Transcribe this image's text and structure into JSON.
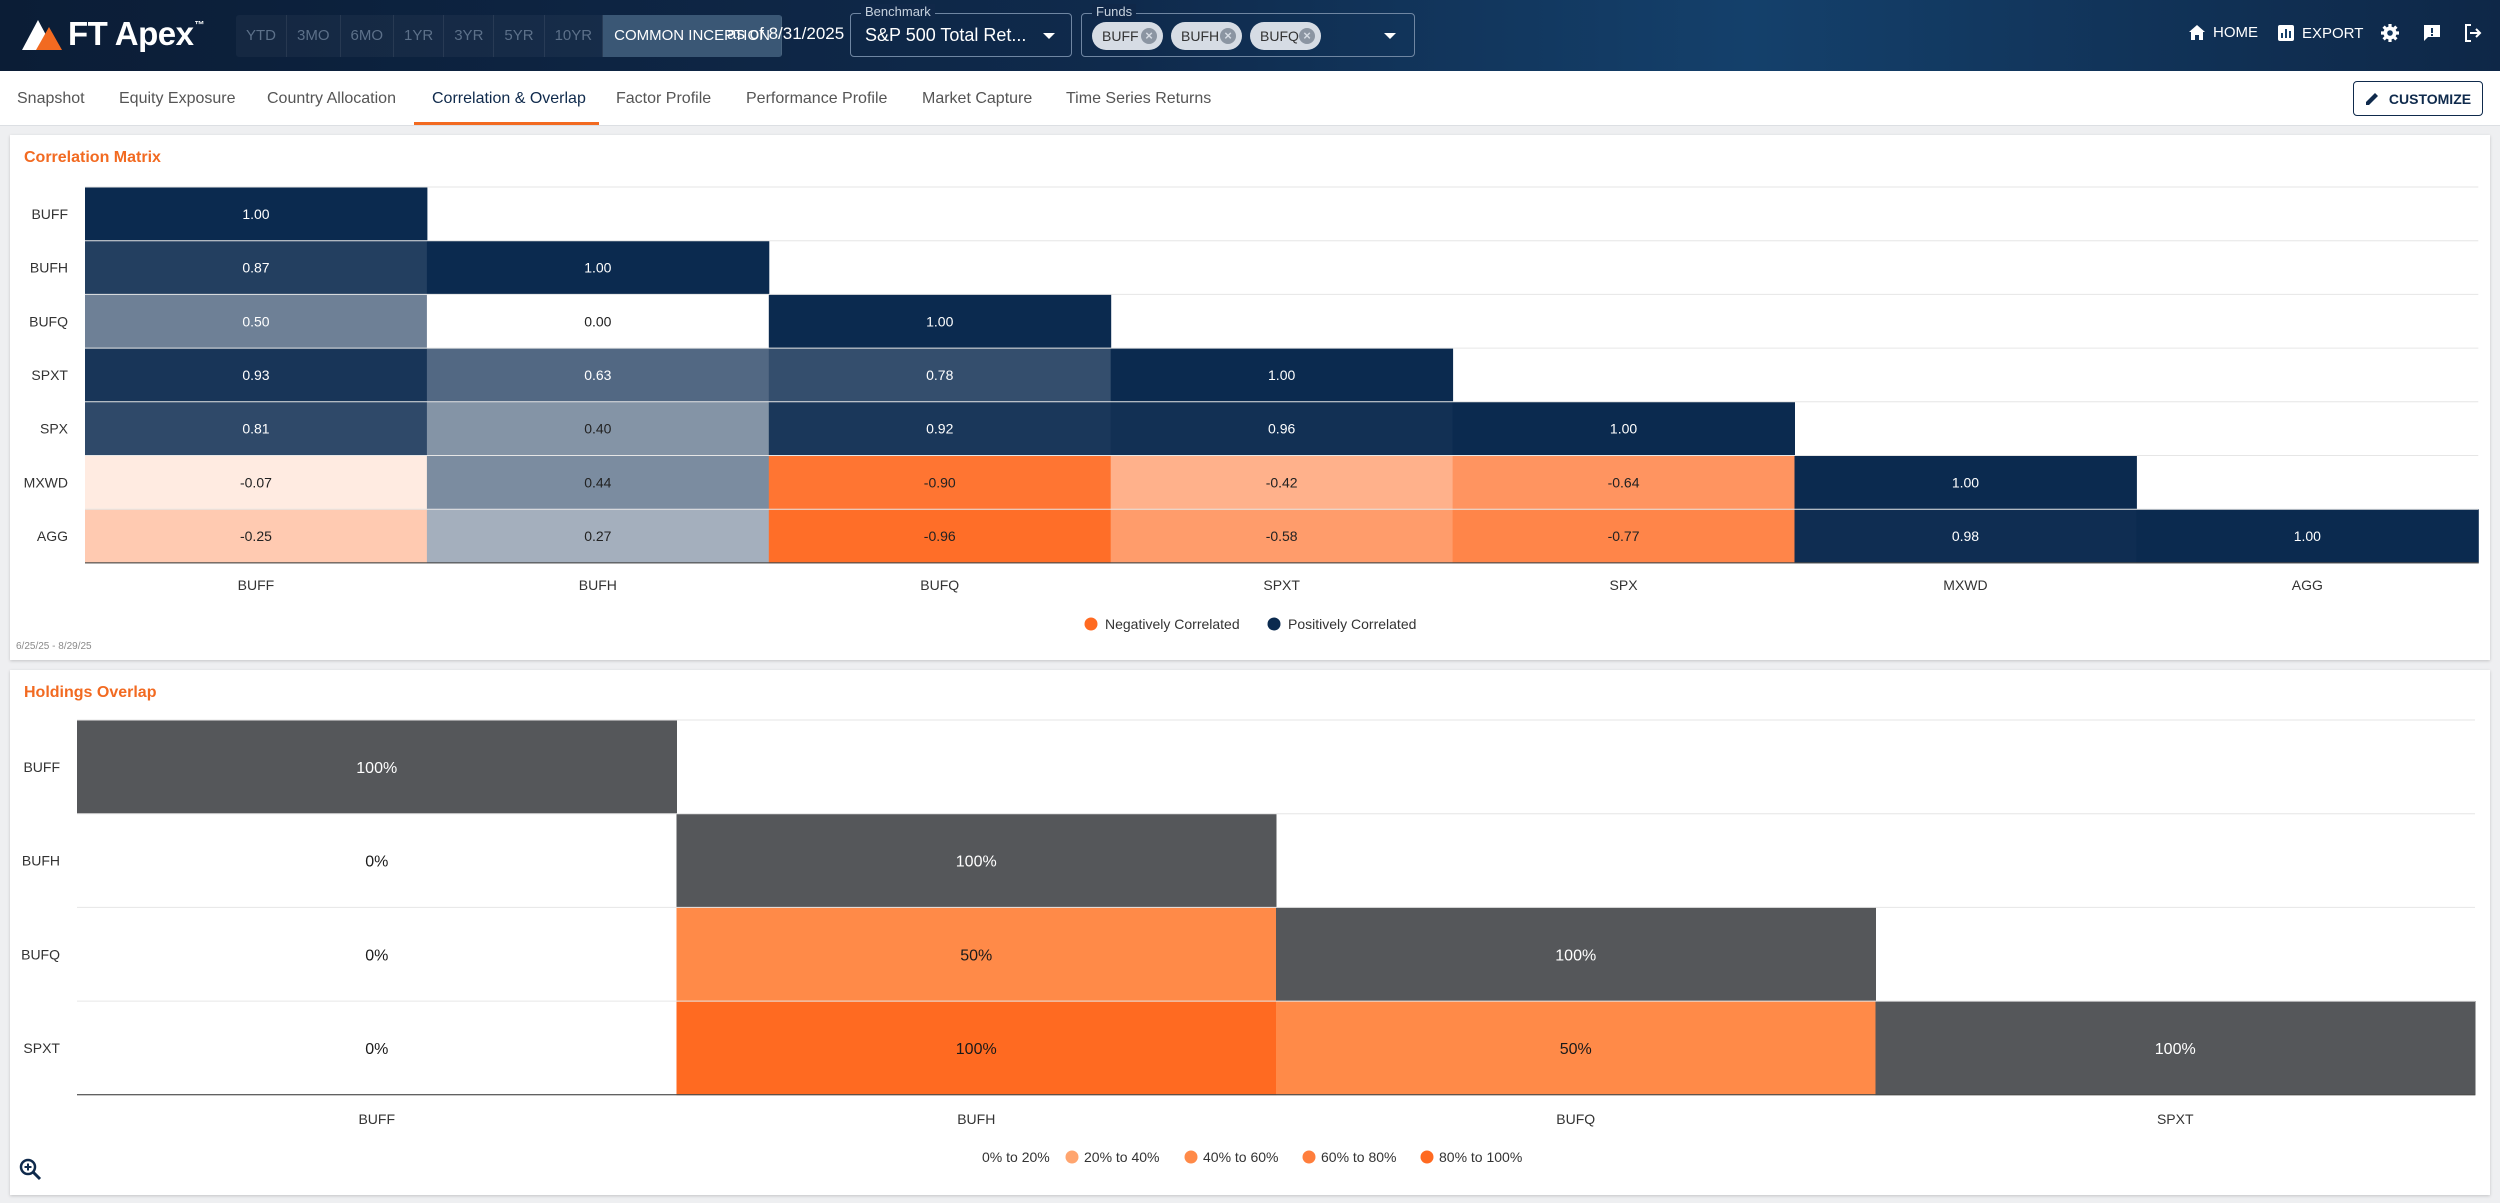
{
  "header": {
    "logo_text": "FT Apex",
    "logo_tm": "™",
    "periods": [
      {
        "label": "YTD",
        "active": false
      },
      {
        "label": "3MO",
        "active": false
      },
      {
        "label": "6MO",
        "active": false
      },
      {
        "label": "1YR",
        "active": false
      },
      {
        "label": "3YR",
        "active": false
      },
      {
        "label": "5YR",
        "active": false
      },
      {
        "label": "10YR",
        "active": false
      },
      {
        "label": "COMMON INCEPTION",
        "active": true
      }
    ],
    "as_of": "as of 8/31/2025",
    "benchmark": {
      "label": "Benchmark",
      "value": "S&P 500 Total Ret..."
    },
    "funds": {
      "label": "Funds",
      "chips": [
        "BUFF",
        "BUFH",
        "BUFQ"
      ]
    },
    "nav": {
      "home": "HOME",
      "export": "EXPORT"
    }
  },
  "tabs": [
    {
      "label": "Snapshot",
      "active": false
    },
    {
      "label": "Equity Exposure",
      "active": false
    },
    {
      "label": "Country Allocation",
      "active": false
    },
    {
      "label": "Correlation & Overlap",
      "active": true
    },
    {
      "label": "Factor Profile",
      "active": false
    },
    {
      "label": "Performance Profile",
      "active": false
    },
    {
      "label": "Market Capture",
      "active": false
    },
    {
      "label": "Time Series Returns",
      "active": false
    }
  ],
  "customize_label": "CUSTOMIZE",
  "colors": {
    "accent": "#f26a21",
    "navy": "#0f2a4c",
    "positive_max": "#0b2a4f",
    "negative_max": "#ff6a21",
    "overlap_full": "#55575a"
  },
  "correlation": {
    "title": "Correlation Matrix",
    "date_range": "6/25/25 - 8/29/25",
    "legend": [
      "Negatively Correlated",
      "Positively Correlated"
    ]
  },
  "overlap": {
    "title": "Holdings Overlap",
    "legend": [
      "0% to 20%",
      "20% to 40%",
      "40% to 60%",
      "60% to 80%",
      "80% to 100%"
    ]
  },
  "chart_data": [
    {
      "type": "heatmap",
      "title": "Correlation Matrix",
      "rows": [
        "BUFF",
        "BUFH",
        "BUFQ",
        "SPXT",
        "SPX",
        "MXWD",
        "AGG"
      ],
      "columns": [
        "BUFF",
        "BUFH",
        "BUFQ",
        "SPXT",
        "SPX",
        "MXWD",
        "AGG"
      ],
      "values": [
        [
          1.0,
          null,
          null,
          null,
          null,
          null,
          null
        ],
        [
          0.87,
          1.0,
          null,
          null,
          null,
          null,
          null
        ],
        [
          0.5,
          0.0,
          1.0,
          null,
          null,
          null,
          null
        ],
        [
          0.93,
          0.63,
          0.78,
          1.0,
          null,
          null,
          null
        ],
        [
          0.81,
          0.4,
          0.92,
          0.96,
          1.0,
          null,
          null
        ],
        [
          -0.07,
          0.44,
          -0.9,
          -0.42,
          -0.64,
          1.0,
          null
        ],
        [
          -0.25,
          0.27,
          -0.96,
          -0.58,
          -0.77,
          0.98,
          1.0
        ]
      ],
      "range": [
        -1,
        1
      ],
      "legend": [
        "Negatively Correlated",
        "Positively Correlated"
      ]
    },
    {
      "type": "heatmap",
      "title": "Holdings Overlap",
      "rows": [
        "BUFF",
        "BUFH",
        "BUFQ",
        "SPXT"
      ],
      "columns": [
        "BUFF",
        "BUFH",
        "BUFQ",
        "SPXT"
      ],
      "values": [
        [
          "100%",
          null,
          null,
          null
        ],
        [
          "0%",
          "100%",
          null,
          null
        ],
        [
          "0%",
          "50%",
          "100%",
          null
        ],
        [
          "0%",
          "100%",
          "50%",
          "100%"
        ]
      ],
      "legend": [
        "0% to 20%",
        "20% to 40%",
        "40% to 60%",
        "60% to 80%",
        "80% to 100%"
      ]
    }
  ]
}
